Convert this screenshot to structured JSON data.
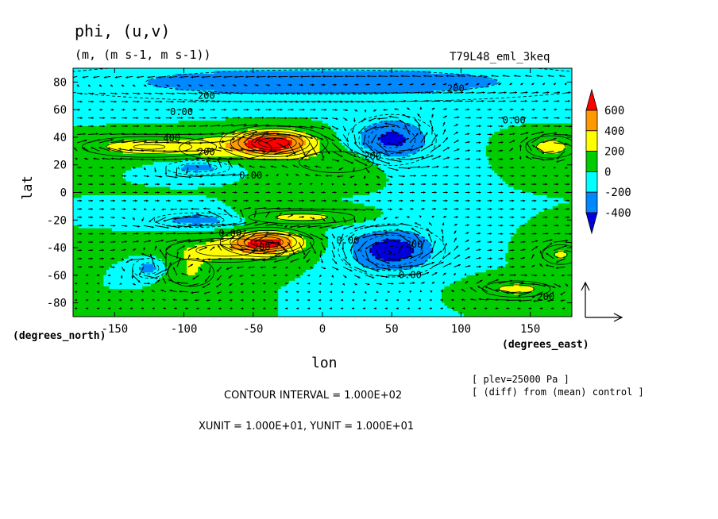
{
  "chart_data": {
    "type": "heatmap",
    "title": "phi, (u,v)",
    "subtitle": "(m, (m s-1, m s-1))",
    "experiment": "T79L48_eml_3keq",
    "xlabel": "lon",
    "ylabel": "lat",
    "x_unit": "(degrees_east)",
    "y_unit": "(degrees_north)",
    "xlim": [
      -180,
      180
    ],
    "ylim": [
      -90,
      90
    ],
    "x_ticks": [
      "-150",
      "-100",
      "-50",
      "0",
      "50",
      "100",
      "150"
    ],
    "y_ticks": [
      "80",
      "60",
      "40",
      "20",
      "0",
      "-20",
      "-40",
      "-60",
      "-80"
    ],
    "colorbar": {
      "labels": [
        "600",
        "400",
        "200",
        "0",
        "-200",
        "-400"
      ],
      "colors": [
        "#ff0000",
        "#ff9900",
        "#ffff00",
        "#00cc00",
        "#00ffff",
        "#0088ff",
        "#0000dd"
      ]
    },
    "contour_labels": [
      "200",
      "0.00",
      "400",
      "200",
      "0.00",
      "200",
      "0.00",
      "200",
      "0.00",
      "200",
      "0.00",
      "200",
      "0.00",
      "200"
    ],
    "fields": [
      {
        "lon": -35,
        "lat": 36,
        "amp": 700,
        "rx": 28,
        "ry": 9
      },
      {
        "lon": -125,
        "lat": 33,
        "amp": 320,
        "rx": 45,
        "ry": 7
      },
      {
        "lon": -70,
        "lat": 32,
        "amp": 200,
        "rx": 40,
        "ry": 10
      },
      {
        "lon": 10,
        "lat": 22,
        "amp": 180,
        "rx": 35,
        "ry": 10
      },
      {
        "lon": 50,
        "lat": 38,
        "amp": -460,
        "rx": 26,
        "ry": 15
      },
      {
        "lon": 0,
        "lat": 80,
        "amp": -300,
        "rx": 200,
        "ry": 14
      },
      {
        "lon": 165,
        "lat": 33,
        "amp": 280,
        "rx": 18,
        "ry": 8
      },
      {
        "lon": -90,
        "lat": 18,
        "amp": -300,
        "rx": 22,
        "ry": 5
      },
      {
        "lon": -40,
        "lat": -36,
        "amp": 620,
        "rx": 25,
        "ry": 8
      },
      {
        "lon": -70,
        "lat": -42,
        "amp": 250,
        "rx": 45,
        "ry": 9
      },
      {
        "lon": -15,
        "lat": -18,
        "amp": 250,
        "rx": 40,
        "ry": 5
      },
      {
        "lon": -95,
        "lat": -58,
        "amp": 200,
        "rx": 20,
        "ry": 12
      },
      {
        "lon": 50,
        "lat": -42,
        "amp": -520,
        "rx": 30,
        "ry": 15
      },
      {
        "lon": -90,
        "lat": -20,
        "amp": -300,
        "rx": 30,
        "ry": 5
      },
      {
        "lon": -125,
        "lat": -55,
        "amp": -280,
        "rx": 12,
        "ry": 7
      },
      {
        "lon": 140,
        "lat": -70,
        "amp": 260,
        "rx": 25,
        "ry": 6
      },
      {
        "lon": 172,
        "lat": -45,
        "amp": 220,
        "rx": 15,
        "ry": 8
      }
    ]
  },
  "footer": {
    "contour_interval": "CONTOUR INTERVAL = 1.000E+02",
    "units": "XUNIT = 1.000E+01, YUNIT = 1.000E+01",
    "plev": "[ plev=25000 Pa ]",
    "diff": "[ (diff) from (mean) control ]"
  }
}
